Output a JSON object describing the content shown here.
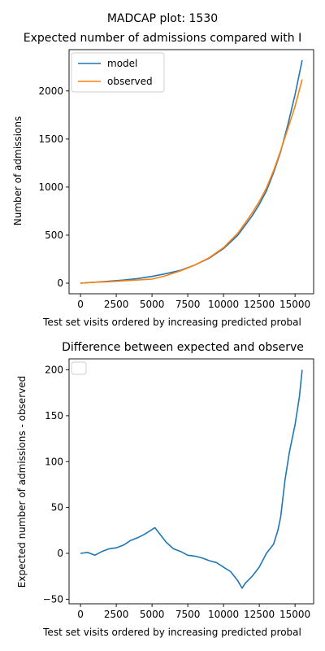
{
  "figure": {
    "suptitle": "MADCAP plot: 1530"
  },
  "chart_data": [
    {
      "type": "line",
      "title": "Expected number of admissions compared with I",
      "xlabel": "Test set visits ordered by increasing predicted probal",
      "ylabel": "Number of admissions",
      "xlim": [
        -800,
        16300
      ],
      "ylim": [
        -110,
        2430
      ],
      "xticks": [
        0,
        2500,
        5000,
        7500,
        10000,
        12500,
        15000
      ],
      "yticks": [
        0,
        500,
        1000,
        1500,
        2000
      ],
      "legend": {
        "placement": "top-left"
      },
      "series": [
        {
          "name": "model",
          "color": "#1f77b4",
          "x": [
            0,
            1000,
            2000,
            3000,
            4000,
            5000,
            6000,
            7000,
            8000,
            9000,
            10000,
            11000,
            12000,
            12500,
            13000,
            13500,
            14000,
            14500,
            15000,
            15500
          ],
          "y": [
            0,
            10,
            20,
            32,
            48,
            70,
            100,
            135,
            190,
            260,
            360,
            500,
            700,
            820,
            960,
            1150,
            1370,
            1650,
            1960,
            2320
          ]
        },
        {
          "name": "observed",
          "color": "#ff7f0e",
          "x": [
            0,
            1000,
            2000,
            3000,
            4000,
            5000,
            6000,
            7000,
            8000,
            9000,
            10000,
            11000,
            12000,
            12500,
            13000,
            13500,
            14000,
            14500,
            15000,
            15500
          ],
          "y": [
            0,
            10,
            15,
            25,
            33,
            42,
            80,
            130,
            190,
            265,
            370,
            520,
            730,
            850,
            990,
            1170,
            1380,
            1610,
            1840,
            2120
          ]
        }
      ]
    },
    {
      "type": "line",
      "title": "Difference between expected and observe",
      "xlabel": "Test set visits ordered by increasing predicted probal",
      "ylabel": "Expected number of admissions - observed",
      "xlim": [
        -800,
        16300
      ],
      "ylim": [
        -55,
        212
      ],
      "xticks": [
        0,
        2500,
        5000,
        7500,
        10000,
        12500,
        15000
      ],
      "yticks": [
        -50,
        0,
        50,
        100,
        150,
        200
      ],
      "legend": {
        "placement": "top-left"
      },
      "series": [
        {
          "color": "#1f77b4",
          "x": [
            0,
            500,
            1000,
            1500,
            2000,
            2500,
            3000,
            3500,
            4000,
            4500,
            5000,
            5200,
            5500,
            6000,
            6500,
            7000,
            7500,
            8000,
            8500,
            9000,
            9500,
            10000,
            10500,
            11000,
            11300,
            11500,
            12000,
            12500,
            13000,
            13500,
            13800,
            14000,
            14300,
            14600,
            15000,
            15300,
            15500
          ],
          "y": [
            0,
            1,
            -2,
            2,
            5,
            6,
            9,
            14,
            17,
            21,
            26,
            28,
            22,
            12,
            5,
            2,
            -2,
            -3,
            -5,
            -8,
            -10,
            -15,
            -20,
            -30,
            -38,
            -33,
            -25,
            -15,
            0,
            10,
            25,
            40,
            80,
            110,
            140,
            170,
            200
          ]
        }
      ]
    }
  ]
}
